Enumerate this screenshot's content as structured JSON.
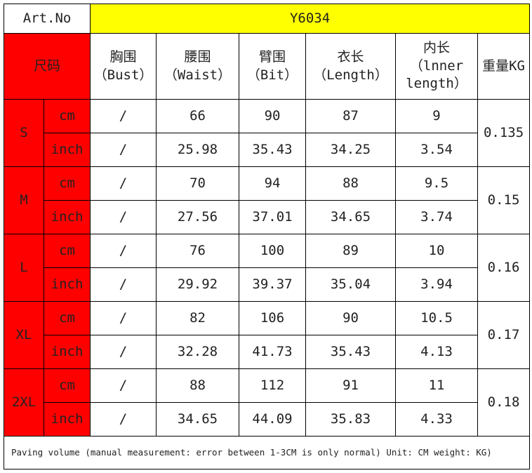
{
  "header": {
    "art_label": "Art.No",
    "art_no": "Y6034"
  },
  "size_label": "尺码",
  "columns": [
    {
      "lines": [
        "胸围",
        "（Bust）"
      ]
    },
    {
      "lines": [
        "腰围",
        "（Waist）"
      ]
    },
    {
      "lines": [
        "臂围",
        "（Bit）"
      ]
    },
    {
      "lines": [
        "衣长",
        "（Length）"
      ]
    },
    {
      "lines": [
        "内长",
        "（lnner",
        "length）"
      ]
    },
    {
      "lines": [
        "重量KG"
      ]
    }
  ],
  "sizes": [
    {
      "name": "S",
      "weight": 0.135,
      "rows": [
        {
          "unit": "cm",
          "values": [
            "/",
            66,
            90,
            87,
            9
          ]
        },
        {
          "unit": "inch",
          "values": [
            "/",
            25.98,
            35.43,
            34.25,
            3.54
          ]
        }
      ]
    },
    {
      "name": "M",
      "weight": 0.15,
      "rows": [
        {
          "unit": "cm",
          "values": [
            "/",
            70,
            94,
            88,
            9.5
          ]
        },
        {
          "unit": "inch",
          "values": [
            "/",
            27.56,
            37.01,
            34.65,
            3.74
          ]
        }
      ]
    },
    {
      "name": "L",
      "weight": 0.16,
      "rows": [
        {
          "unit": "cm",
          "values": [
            "/",
            76,
            100,
            89,
            10
          ]
        },
        {
          "unit": "inch",
          "values": [
            "/",
            29.92,
            39.37,
            35.04,
            3.94
          ]
        }
      ]
    },
    {
      "name": "XL",
      "weight": 0.17,
      "rows": [
        {
          "unit": "cm",
          "values": [
            "/",
            82,
            106,
            90,
            10.5
          ]
        },
        {
          "unit": "inch",
          "values": [
            "/",
            32.28,
            41.73,
            35.43,
            4.13
          ]
        }
      ]
    },
    {
      "name": "2XL",
      "weight": 0.18,
      "rows": [
        {
          "unit": "cm",
          "values": [
            "/",
            88,
            112,
            91,
            11
          ]
        },
        {
          "unit": "inch",
          "values": [
            "/",
            34.65,
            44.09,
            35.83,
            4.33
          ]
        }
      ]
    }
  ],
  "footer": "Paving volume (manual measurement: error between 1-3CM is only normal) Unit: CM weight: KG)"
}
